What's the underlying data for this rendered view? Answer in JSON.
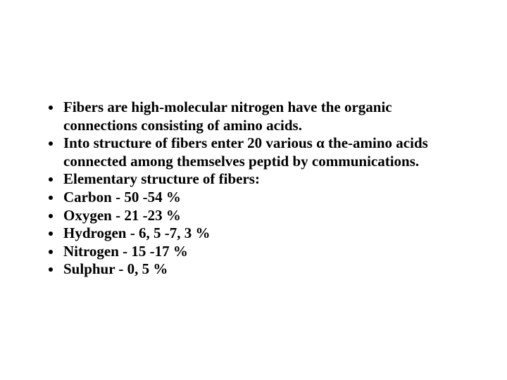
{
  "slide": {
    "background_color": "#ffffff",
    "text_color": "#000000",
    "font_family": "Times New Roman",
    "font_size_pt": 16,
    "font_weight": "bold",
    "bullets": [
      "Fibers are high-molecular nitrogen have the organic connections consisting of amino acids.",
      "Into structure of fibers enter 20 various α the-amino acids connected among themselves peptid by communications.",
      "Elementary structure of fibers:",
      "Carbon - 50 -54 %",
      "Oxygen - 21 -23 %",
      "Hydrogen - 6, 5 -7, 3 %",
      "Nitrogen - 15 -17 %",
      "Sulphur - 0, 5 %"
    ]
  }
}
